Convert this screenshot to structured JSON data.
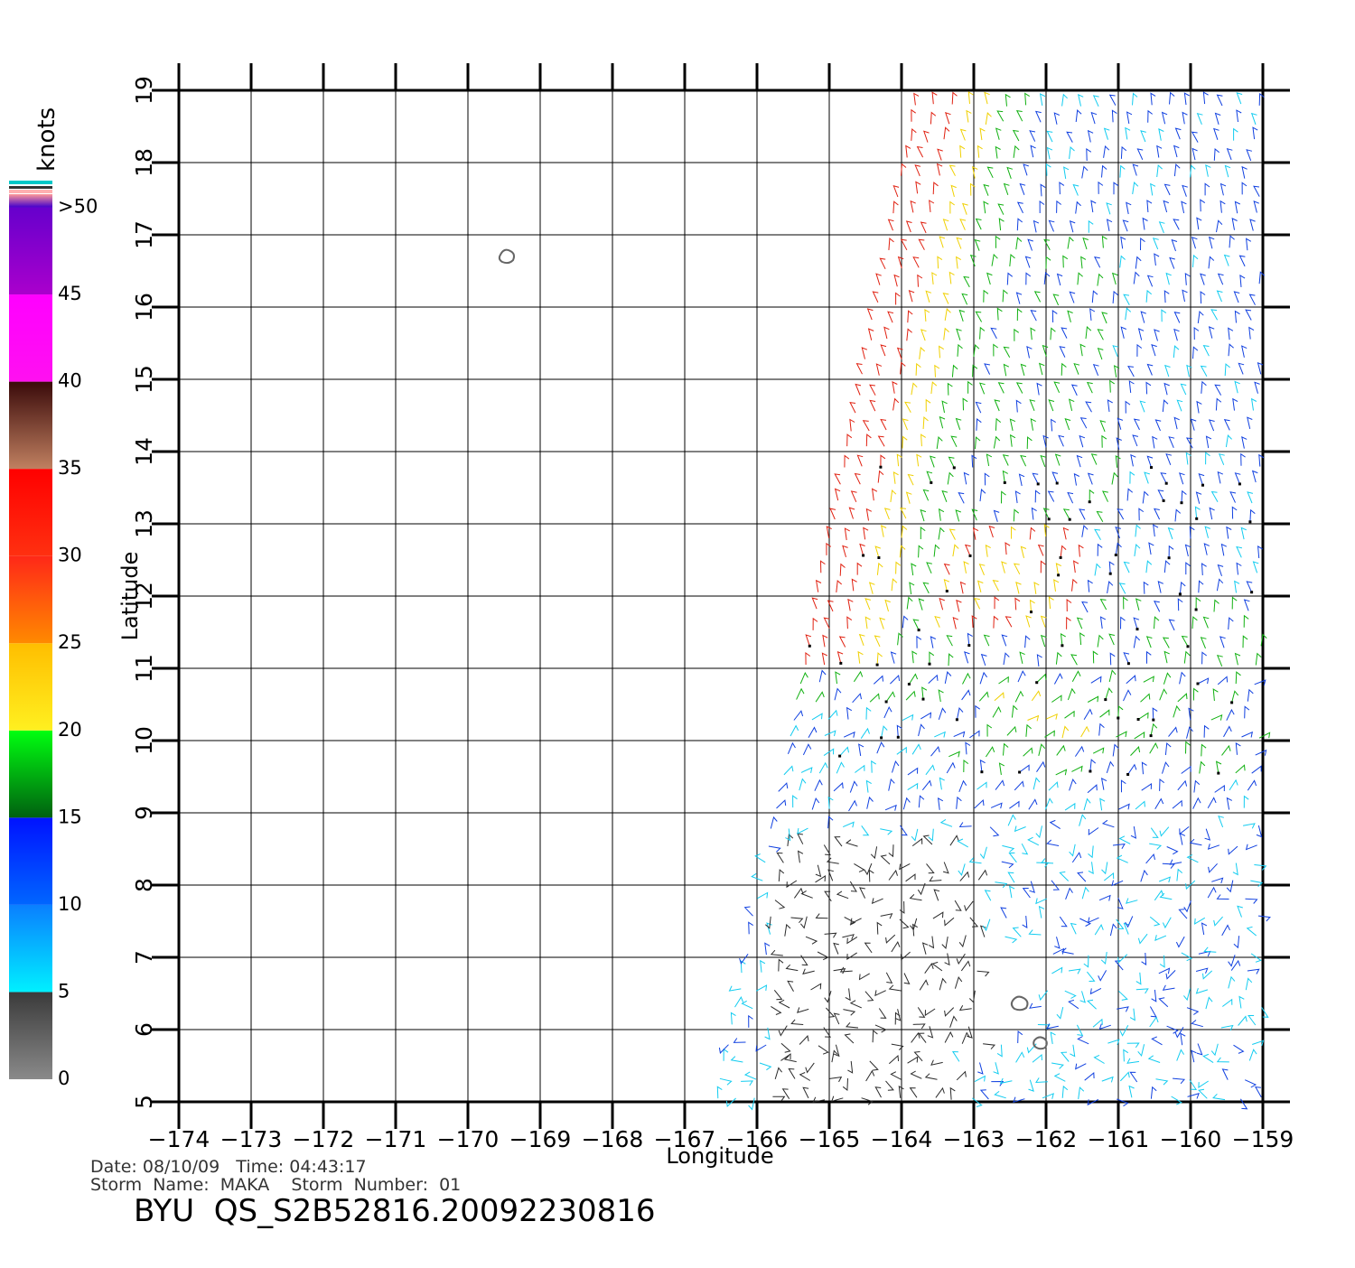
{
  "plot": {
    "xlabel": "Longitude",
    "ylabel": "Latitude",
    "lon_range": [
      -174,
      -159
    ],
    "lat_range": [
      5,
      19
    ],
    "lon_ticks": [
      -174,
      -173,
      -172,
      -171,
      -170,
      -169,
      -168,
      -167,
      -166,
      -165,
      -164,
      -163,
      -162,
      -161,
      -160,
      -159
    ],
    "lat_ticks": [
      5,
      6,
      7,
      8,
      9,
      10,
      11,
      12,
      13,
      14,
      15,
      16,
      17,
      18,
      19
    ],
    "grid": true
  },
  "colorbar": {
    "unit": "knots",
    "bands": [
      {
        "label": "0",
        "color_top": "#3a3a3a",
        "color_bottom": "#8a8a8a"
      },
      {
        "label": "5",
        "color_top": "#0a7fff",
        "color_bottom": "#00f0ff"
      },
      {
        "label": "10",
        "color_top": "#0012ff",
        "color_bottom": "#0066ff"
      },
      {
        "label": "15",
        "color_top": "#00ff10",
        "color_bottom": "#006010"
      },
      {
        "label": "20",
        "color_top": "#ffbe00",
        "color_bottom": "#fff020"
      },
      {
        "label": "25",
        "color_top": "#ff2818",
        "color_bottom": "#ff8a00"
      },
      {
        "label": "30",
        "color_top": "#ff0000",
        "color_bottom": "#ff3010"
      },
      {
        "label": "35",
        "color_top": "#3a0a0a",
        "color_bottom": "#c08060"
      },
      {
        "label": "40",
        "color_top": "#ff00ff",
        "color_bottom": "#ff10f0"
      },
      {
        "label": "45",
        "color_top": "#6600cc",
        "color_bottom": "#aa00cc"
      },
      {
        "label": ">50",
        "color_top": "#ff9999",
        "color_bottom": "#4400cc"
      }
    ]
  },
  "info": {
    "date_line": "Date: 08/10/09   Time: 04:43:17",
    "storm_line": "Storm  Name:  MAKA    Storm  Number:  01",
    "product": "BYU  QS_S2B52816.20092230816"
  },
  "wind_colors": {
    "calm": "#2a2a2a",
    "light": "#12ccf0",
    "moderate": "#1040e0",
    "fresh": "#10b010",
    "strong": "#f0d000",
    "gale": "#e02010"
  }
}
